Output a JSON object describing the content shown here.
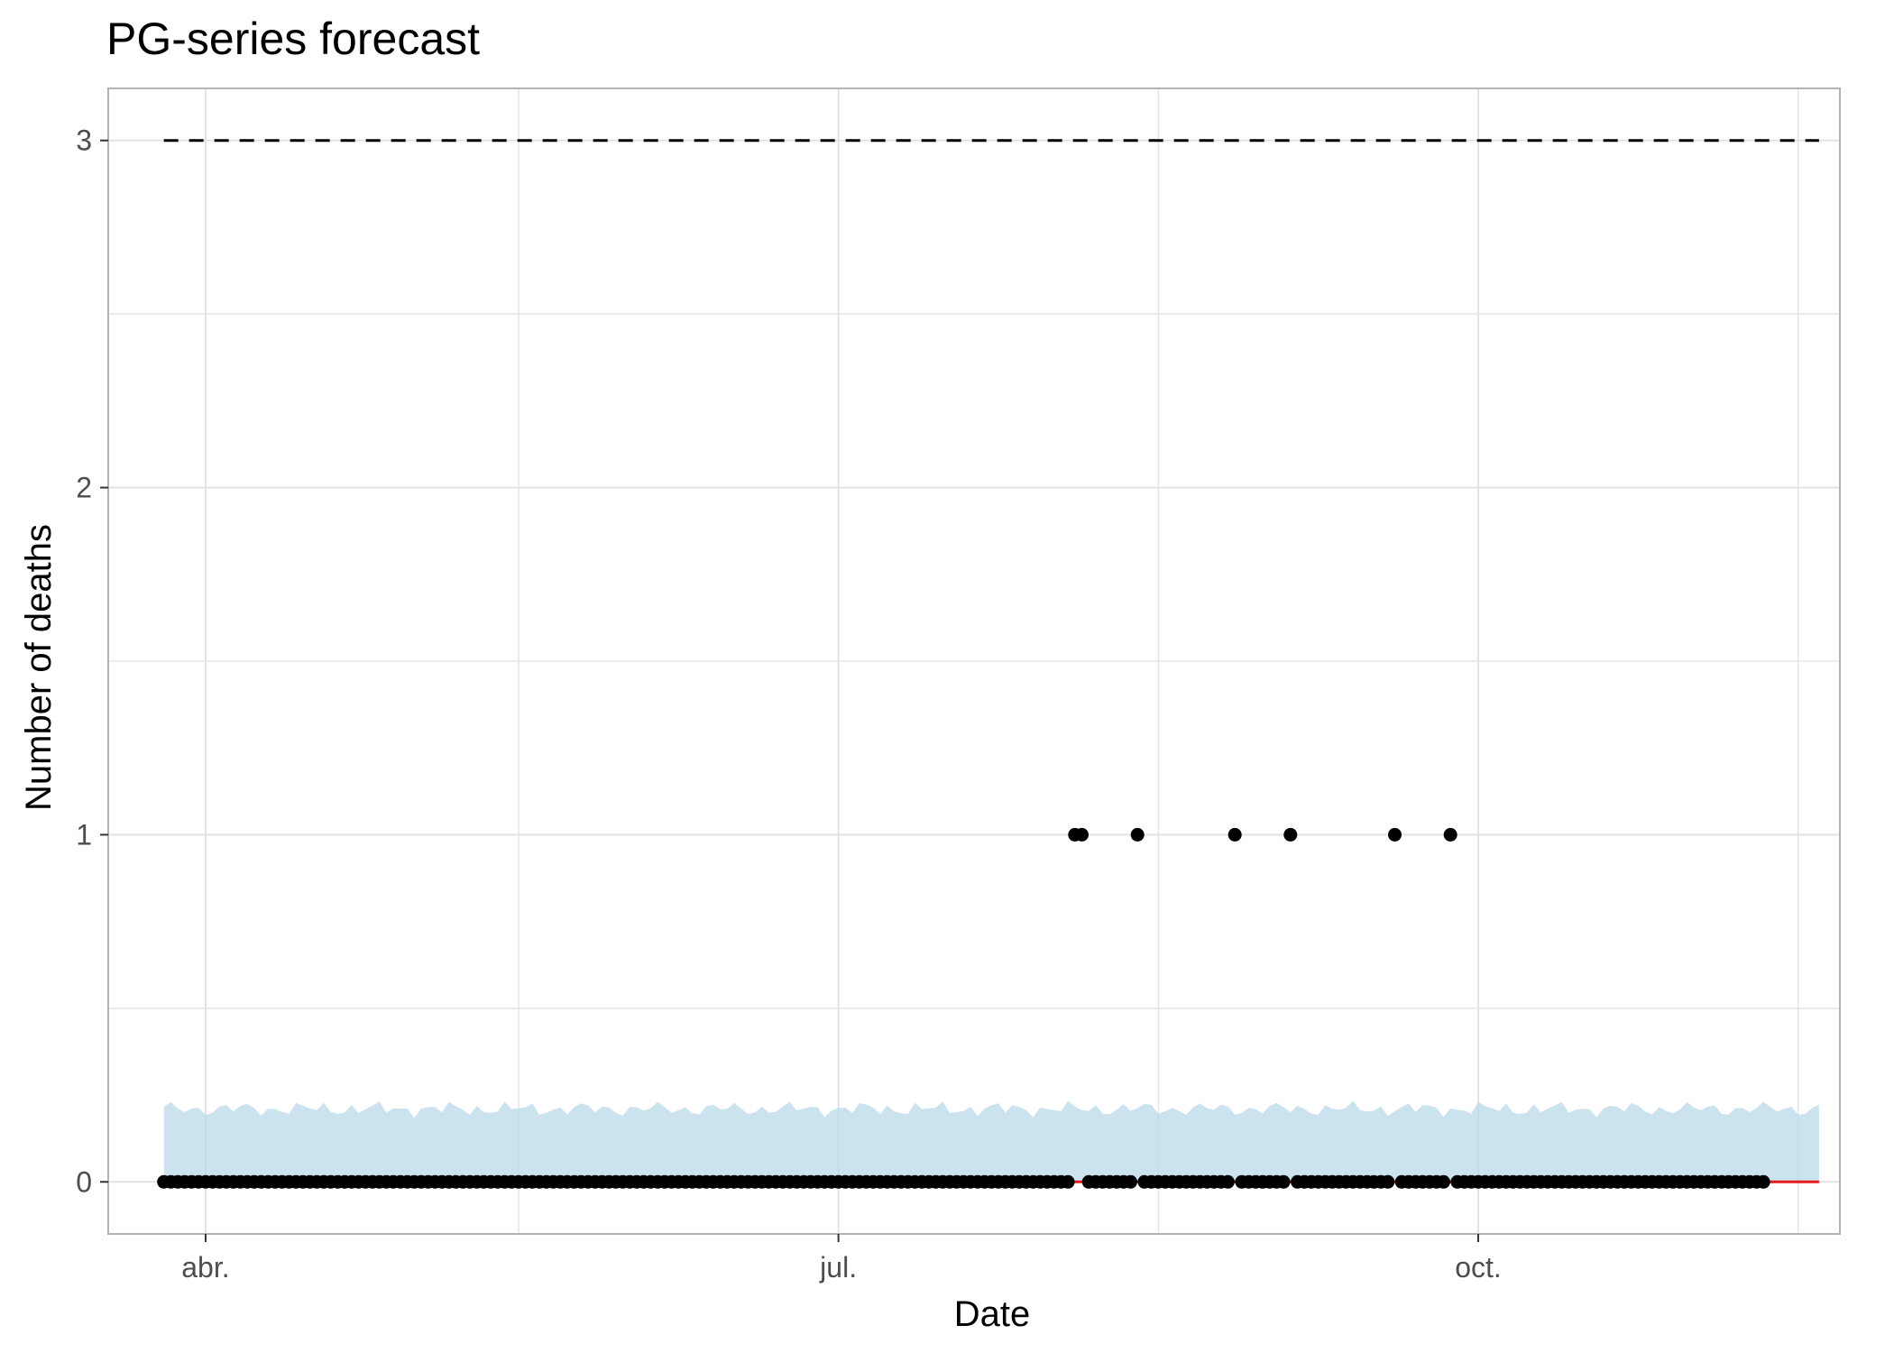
{
  "chart_data": {
    "type": "line",
    "title": "PG-series forecast",
    "xlabel": "Date",
    "ylabel": "Number of deaths",
    "x_type": "date",
    "xlim": [
      "2021-03-18",
      "2021-11-22"
    ],
    "ylim": [
      -0.15,
      3.15
    ],
    "x_ticks": [
      {
        "date": "2021-04-01",
        "label": "abr."
      },
      {
        "date": "2021-07-01",
        "label": "jul."
      },
      {
        "date": "2021-10-01",
        "label": "oct."
      }
    ],
    "x_minor_ticks": [
      "2021-05-16",
      "2021-08-16",
      "2021-11-16"
    ],
    "y_ticks": [
      0,
      1,
      2,
      3
    ],
    "y_minor_ticks": [
      0.5,
      1.5,
      2.5
    ],
    "grid": true,
    "colors": {
      "observed": "#000000",
      "fitted": "#e41a1c",
      "interval": "#b9d9ea",
      "threshold": "#000000",
      "grid": "#e0e0e0",
      "panel_border": "#b3b3b3"
    },
    "series": [
      {
        "role": "observed",
        "style": "points",
        "x_start": "2021-03-26",
        "x_end": "2021-11-11",
        "value_default": 0,
        "nonzero_points": [
          {
            "date": "2021-08-04",
            "value": 1
          },
          {
            "date": "2021-08-05",
            "value": 1
          },
          {
            "date": "2021-08-13",
            "value": 1
          },
          {
            "date": "2021-08-27",
            "value": 1
          },
          {
            "date": "2021-09-04",
            "value": 1
          },
          {
            "date": "2021-09-19",
            "value": 1
          },
          {
            "date": "2021-09-27",
            "value": 1
          }
        ]
      },
      {
        "role": "fitted",
        "style": "line",
        "x_start": "2021-03-26",
        "x_end": "2021-11-19",
        "value": 0
      },
      {
        "role": "interval",
        "style": "ribbon",
        "x_start": "2021-03-26",
        "x_end": "2021-11-19",
        "lower": 0,
        "upper_approx": 0.21
      },
      {
        "role": "threshold",
        "style": "dashed",
        "x_start": "2021-03-26",
        "x_end": "2021-11-19",
        "value": 3
      }
    ]
  }
}
